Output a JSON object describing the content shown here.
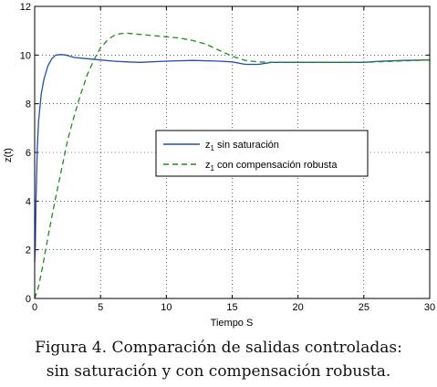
{
  "caption": {
    "line1": "Figura 4. Comparación de salidas controladas:",
    "line2": "sin saturación y con compensación robusta."
  },
  "chart_data": {
    "type": "line",
    "xlabel": "Tiempo S",
    "ylabel": "z(t)",
    "xlim": [
      0,
      30
    ],
    "ylim": [
      0,
      12
    ],
    "xticks": [
      0,
      5,
      10,
      15,
      20,
      25,
      30
    ],
    "yticks": [
      0,
      2,
      4,
      6,
      8,
      10,
      12
    ],
    "grid": true,
    "legend_position": "center",
    "series": [
      {
        "name_main": "z",
        "name_sub": "1",
        "name_rest": " sin saturación",
        "color": "#1f4fb4",
        "style": "solid",
        "x": [
          0,
          0.05,
          0.1,
          0.2,
          0.3,
          0.5,
          0.7,
          1.0,
          1.3,
          1.6,
          2.0,
          2.4,
          3.0,
          4.0,
          5.0,
          6.0,
          7.0,
          8.0,
          10.0,
          12.0,
          14.0,
          15.0,
          16.0,
          17.0,
          18.0,
          19.0,
          20.0,
          22.0,
          25.0,
          26.0,
          28.0,
          30.0
        ],
        "y": [
          1.5,
          2.2,
          4.0,
          6.2,
          7.3,
          8.4,
          9.0,
          9.55,
          9.85,
          10.0,
          10.02,
          10.0,
          9.9,
          9.85,
          9.8,
          9.75,
          9.72,
          9.7,
          9.75,
          9.78,
          9.75,
          9.72,
          9.62,
          9.62,
          9.7,
          9.7,
          9.7,
          9.7,
          9.7,
          9.74,
          9.78,
          9.8
        ]
      },
      {
        "name_main": "z",
        "name_sub": "1",
        "name_rest": " con compensación robusta",
        "color": "#1e8c1e",
        "style": "dashed",
        "x": [
          0,
          0.3,
          0.6,
          1.0,
          1.5,
          2.0,
          2.5,
          3.0,
          3.5,
          4.0,
          4.5,
          5.0,
          5.5,
          6.0,
          6.5,
          7.0,
          8.0,
          9.0,
          10.0,
          11.0,
          12.0,
          13.0,
          14.0,
          15.0,
          16.0,
          17.0,
          18.0,
          19.0,
          20.0,
          22.0,
          25.0,
          28.0,
          30.0
        ],
        "y": [
          0,
          0.5,
          1.3,
          2.5,
          3.9,
          5.2,
          6.5,
          7.5,
          8.4,
          9.2,
          9.8,
          10.3,
          10.6,
          10.8,
          10.88,
          10.9,
          10.85,
          10.8,
          10.75,
          10.7,
          10.6,
          10.45,
          10.2,
          9.95,
          9.78,
          9.72,
          9.7,
          9.7,
          9.7,
          9.7,
          9.7,
          9.76,
          9.8
        ]
      }
    ]
  }
}
